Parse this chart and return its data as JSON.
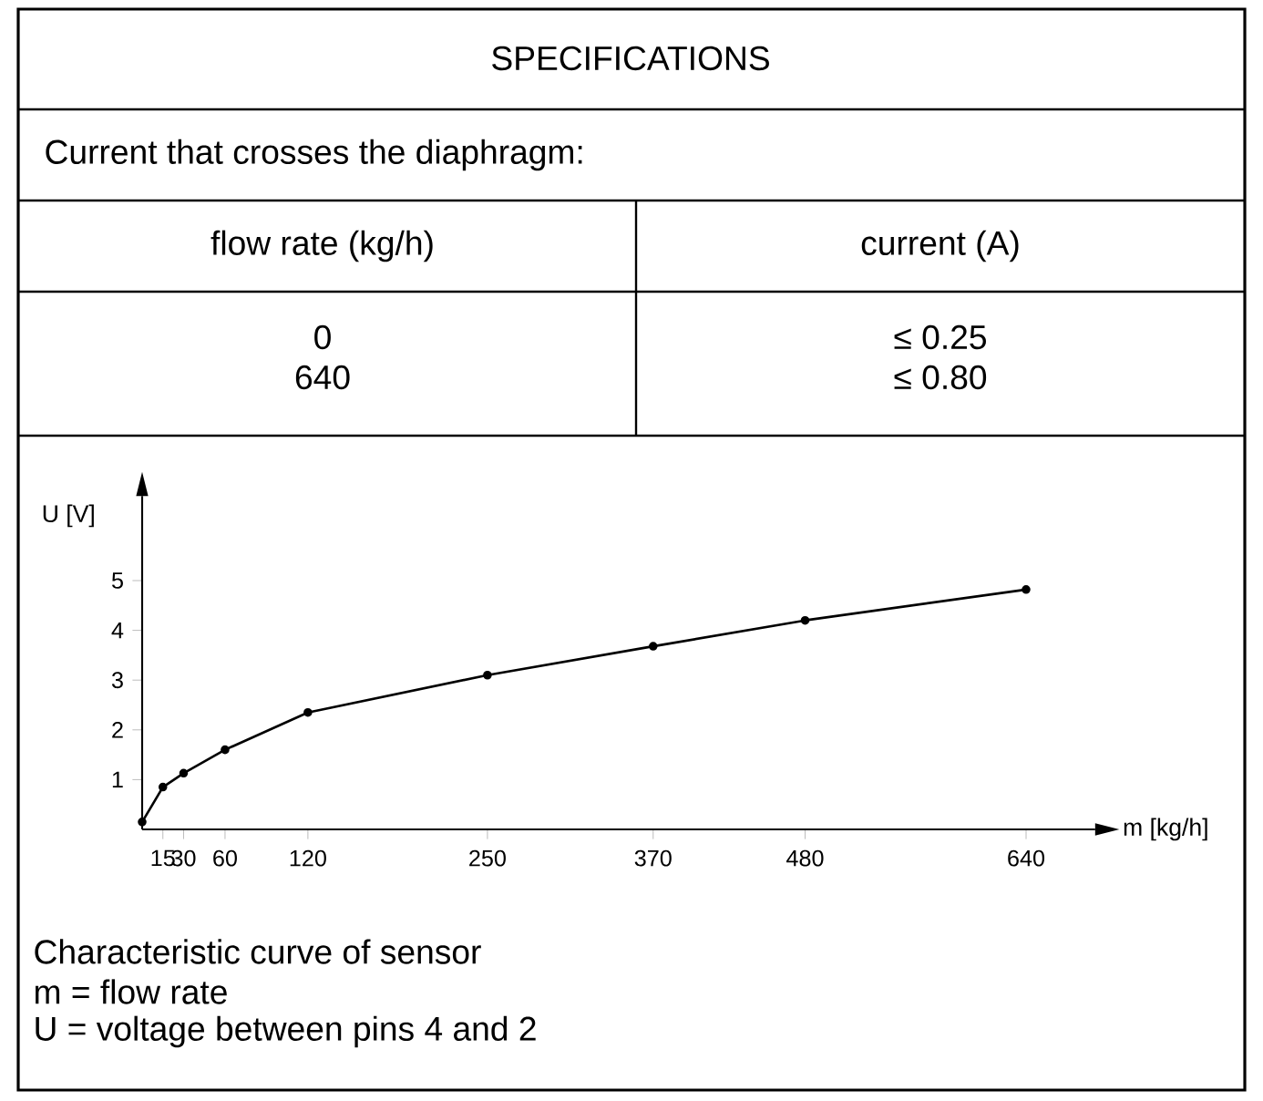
{
  "chart_data": {
    "type": "line",
    "title": "SPECIFICATIONS",
    "subtitle": "Current that crosses the diaphragm:",
    "xlabel": "m [kg/h]",
    "ylabel": "U [V]",
    "annotations": [
      "flow rate (kg/h)",
      "current (A)",
      "0",
      "640",
      "≤ 0.25",
      "≤ 0.80",
      "Characteristic curve of sensor",
      "m = flow rate",
      "U = voltage between pins 4 and 2"
    ],
    "x": [
      0,
      15,
      30,
      60,
      120,
      250,
      370,
      480,
      640
    ],
    "series": [
      {
        "color": "#000000",
        "values": [
          0.15,
          0.85,
          1.13,
          1.6,
          2.35,
          3.1,
          3.68,
          4.2,
          4.82
        ]
      }
    ],
    "xlim": [
      0,
      690
    ],
    "ylim": [
      0,
      6.7
    ],
    "xticks": [
      15,
      30,
      60,
      120,
      250,
      370,
      480,
      640
    ],
    "yticks": [
      1,
      2,
      3,
      4,
      5
    ],
    "marker": "circle",
    "line_style": "solid"
  }
}
